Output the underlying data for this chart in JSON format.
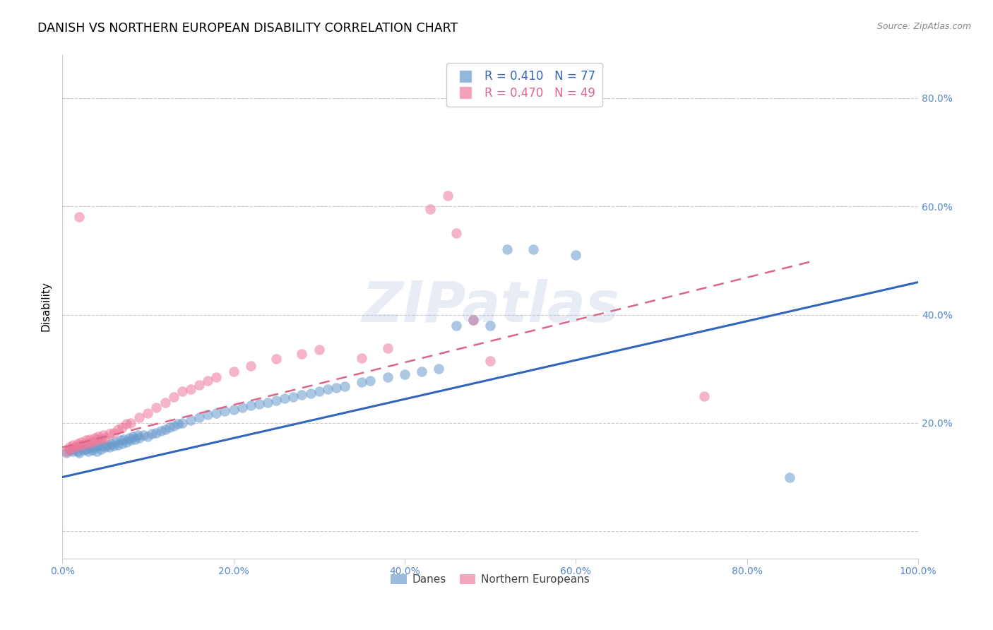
{
  "title": "DANISH VS NORTHERN EUROPEAN DISABILITY CORRELATION CHART",
  "source": "Source: ZipAtlas.com",
  "ylabel": "Disability",
  "watermark": "ZIPatlas",
  "danes_R": 0.41,
  "danes_N": 77,
  "norths_R": 0.47,
  "norths_N": 49,
  "danes_color": "#6699cc",
  "norths_color": "#ee7799",
  "danes_line_color": "#3366bb",
  "norths_line_color": "#dd6688",
  "xlim": [
    0.0,
    1.0
  ],
  "ylim": [
    -0.05,
    0.88
  ],
  "danes_x": [
    0.005,
    0.008,
    0.01,
    0.012,
    0.015,
    0.018,
    0.02,
    0.022,
    0.025,
    0.028,
    0.03,
    0.032,
    0.035,
    0.038,
    0.04,
    0.042,
    0.045,
    0.048,
    0.05,
    0.052,
    0.055,
    0.058,
    0.06,
    0.062,
    0.065,
    0.068,
    0.07,
    0.072,
    0.075,
    0.078,
    0.08,
    0.082,
    0.085,
    0.088,
    0.09,
    0.095,
    0.1,
    0.105,
    0.11,
    0.115,
    0.12,
    0.125,
    0.13,
    0.135,
    0.14,
    0.15,
    0.16,
    0.17,
    0.18,
    0.19,
    0.2,
    0.21,
    0.22,
    0.23,
    0.24,
    0.25,
    0.26,
    0.27,
    0.28,
    0.29,
    0.3,
    0.31,
    0.32,
    0.33,
    0.35,
    0.36,
    0.38,
    0.4,
    0.42,
    0.44,
    0.46,
    0.48,
    0.5,
    0.52,
    0.55,
    0.6,
    0.85
  ],
  "danes_y": [
    0.145,
    0.15,
    0.15,
    0.148,
    0.152,
    0.148,
    0.145,
    0.155,
    0.15,
    0.152,
    0.148,
    0.155,
    0.15,
    0.155,
    0.148,
    0.158,
    0.152,
    0.158,
    0.155,
    0.16,
    0.155,
    0.162,
    0.158,
    0.165,
    0.16,
    0.168,
    0.162,
    0.17,
    0.165,
    0.172,
    0.168,
    0.175,
    0.17,
    0.178,
    0.172,
    0.178,
    0.175,
    0.18,
    0.182,
    0.185,
    0.188,
    0.192,
    0.195,
    0.198,
    0.2,
    0.205,
    0.21,
    0.215,
    0.218,
    0.222,
    0.225,
    0.228,
    0.232,
    0.235,
    0.238,
    0.242,
    0.245,
    0.248,
    0.252,
    0.255,
    0.258,
    0.262,
    0.265,
    0.268,
    0.275,
    0.278,
    0.285,
    0.29,
    0.295,
    0.3,
    0.38,
    0.39,
    0.38,
    0.52,
    0.52,
    0.51,
    0.1
  ],
  "norths_x": [
    0.005,
    0.008,
    0.01,
    0.012,
    0.015,
    0.018,
    0.02,
    0.022,
    0.025,
    0.028,
    0.03,
    0.032,
    0.035,
    0.038,
    0.04,
    0.042,
    0.045,
    0.048,
    0.05,
    0.055,
    0.06,
    0.065,
    0.07,
    0.075,
    0.08,
    0.09,
    0.1,
    0.11,
    0.12,
    0.13,
    0.14,
    0.15,
    0.16,
    0.17,
    0.18,
    0.2,
    0.22,
    0.25,
    0.28,
    0.3,
    0.35,
    0.38,
    0.43,
    0.45,
    0.46,
    0.48,
    0.5,
    0.75,
    0.02
  ],
  "norths_y": [
    0.148,
    0.155,
    0.152,
    0.16,
    0.155,
    0.162,
    0.158,
    0.165,
    0.16,
    0.168,
    0.162,
    0.17,
    0.165,
    0.172,
    0.168,
    0.175,
    0.17,
    0.178,
    0.172,
    0.18,
    0.182,
    0.188,
    0.192,
    0.198,
    0.2,
    0.21,
    0.218,
    0.228,
    0.238,
    0.248,
    0.258,
    0.262,
    0.27,
    0.278,
    0.285,
    0.295,
    0.305,
    0.318,
    0.328,
    0.335,
    0.32,
    0.338,
    0.595,
    0.62,
    0.55,
    0.39,
    0.315,
    0.25,
    0.58
  ]
}
